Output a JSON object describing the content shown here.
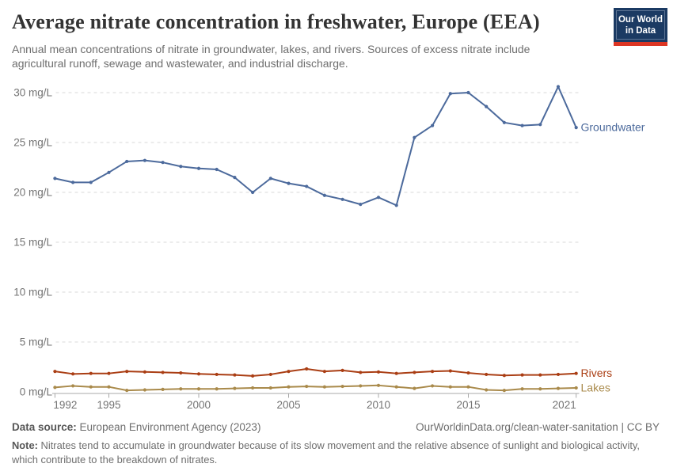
{
  "header": {
    "title": "Average nitrate concentration in freshwater, Europe (EEA)",
    "subtitle": "Annual mean concentrations of nitrate in groundwater, lakes, and rivers. Sources of excess nitrate include agricultural runoff, sewage and wastewater, and industrial discharge.",
    "logo": {
      "line1": "Our World",
      "line2": "in Data",
      "bg_color": "#1b3a63",
      "bar_color": "#dc3523"
    }
  },
  "chart_data": {
    "type": "line",
    "title": "Average nitrate concentration in freshwater, Europe (EEA)",
    "unit": "mg/L",
    "xlabel": "",
    "ylabel": "",
    "ylim": [
      0,
      31
    ],
    "grid": "horizontal-dashed",
    "legend_position": "line-end-labels-right",
    "x": [
      1992,
      1993,
      1994,
      1995,
      1996,
      1997,
      1998,
      1999,
      2000,
      2001,
      2002,
      2003,
      2004,
      2005,
      2006,
      2007,
      2008,
      2009,
      2010,
      2011,
      2012,
      2013,
      2014,
      2015,
      2016,
      2017,
      2018,
      2019,
      2020,
      2021
    ],
    "x_ticks": [
      1992,
      1995,
      2000,
      2005,
      2010,
      2015,
      2021
    ],
    "y_ticks": [
      0,
      5,
      10,
      15,
      20,
      25,
      30
    ],
    "series": [
      {
        "name": "Groundwater",
        "color": "#4C6A9C",
        "values": [
          21.4,
          21.0,
          21.0,
          22.0,
          23.1,
          23.2,
          23.0,
          22.6,
          22.4,
          22.3,
          21.5,
          20.0,
          21.4,
          20.9,
          20.6,
          19.7,
          19.3,
          18.8,
          19.5,
          18.7,
          25.5,
          26.7,
          29.9,
          30.0,
          28.6,
          27.0,
          26.7,
          26.8,
          30.6,
          26.5
        ]
      },
      {
        "name": "Rivers",
        "color": "#AA3E14",
        "values": [
          2.05,
          1.8,
          1.85,
          1.85,
          2.05,
          2.0,
          1.95,
          1.9,
          1.8,
          1.75,
          1.7,
          1.6,
          1.75,
          2.05,
          2.3,
          2.05,
          2.15,
          1.95,
          2.0,
          1.85,
          1.95,
          2.05,
          2.1,
          1.9,
          1.75,
          1.65,
          1.7,
          1.7,
          1.75,
          1.85
        ]
      },
      {
        "name": "Lakes",
        "color": "#A98A4B",
        "values": [
          0.45,
          0.6,
          0.5,
          0.5,
          0.15,
          0.2,
          0.25,
          0.3,
          0.3,
          0.3,
          0.35,
          0.4,
          0.4,
          0.5,
          0.55,
          0.5,
          0.55,
          0.6,
          0.65,
          0.5,
          0.35,
          0.6,
          0.5,
          0.5,
          0.2,
          0.15,
          0.3,
          0.3,
          0.35,
          0.4
        ]
      }
    ]
  },
  "footer": {
    "source_label": "Data source:",
    "source_value": "European Environment Agency (2023)",
    "link_text": "OurWorldinData.org/clean-water-sanitation | CC BY",
    "note_label": "Note:",
    "note_text": "Nitrates tend to accumulate in groundwater because of its slow movement and the relative absence of sunlight and biological activity, which contribute to the breakdown of nitrates."
  }
}
